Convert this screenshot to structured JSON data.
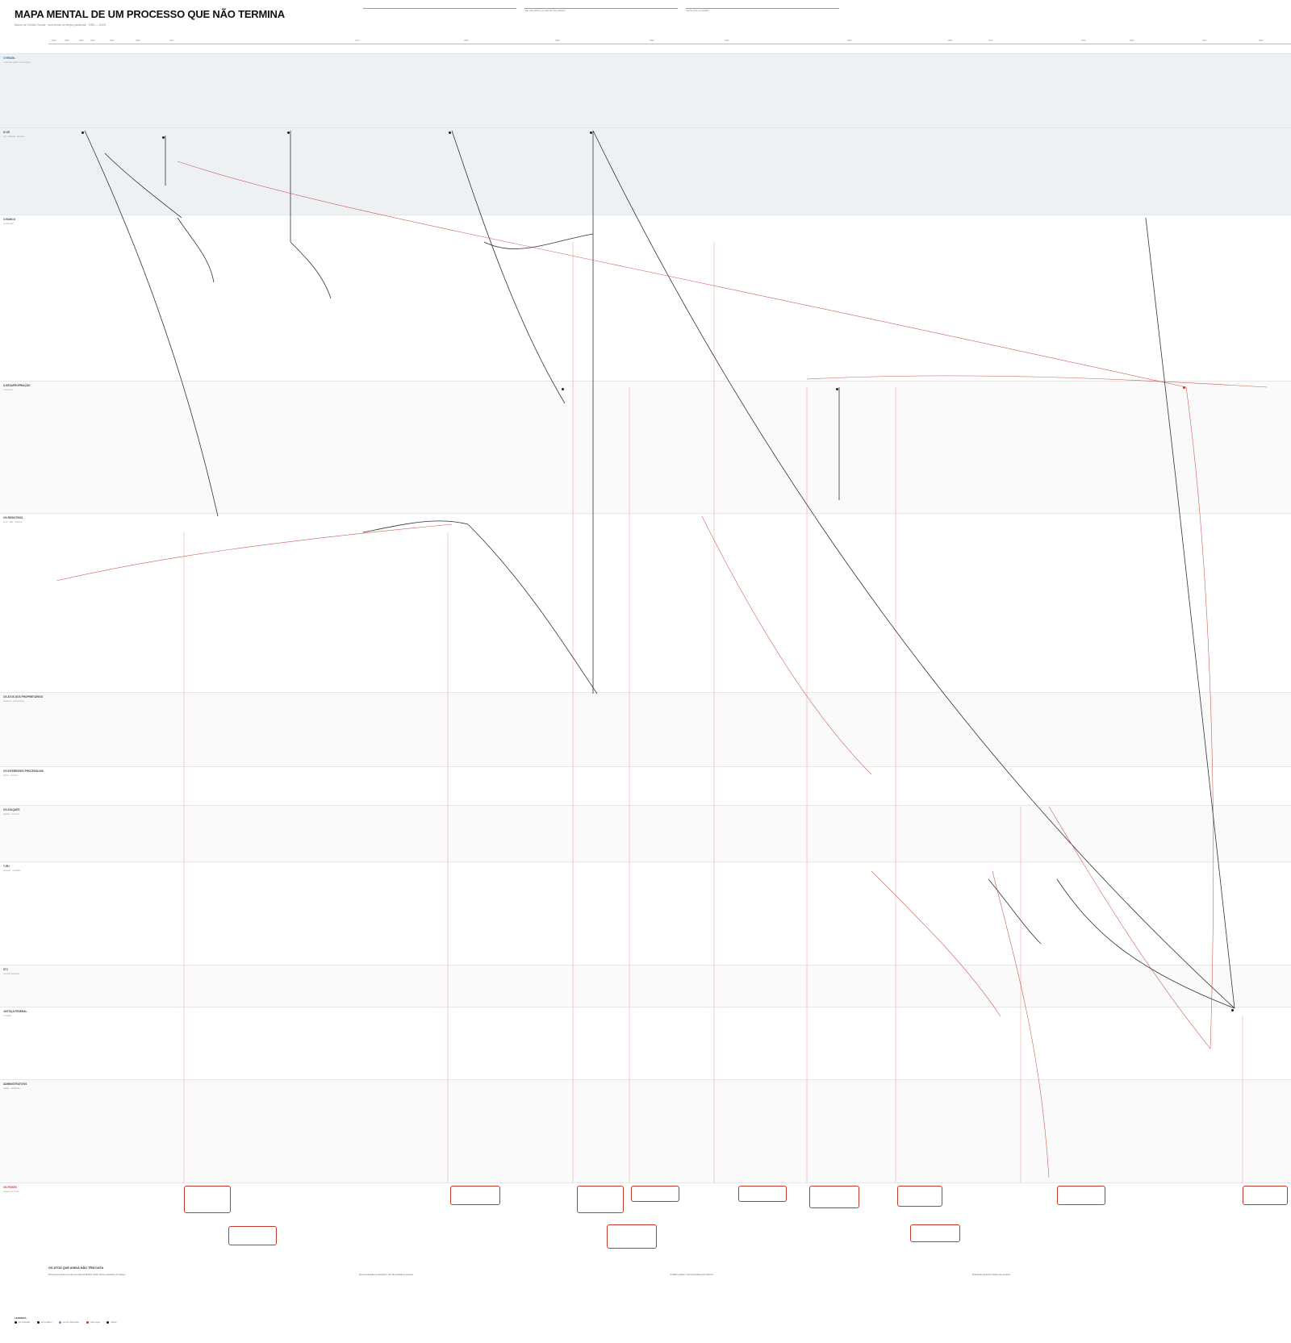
{
  "header": {
    "title": "MAPA MENTAL DE UM PROCESSO QUE NÃO TERMINA",
    "subtitle": "Banco de Crédito Gerais · seis linhas do tempo paralelas · 1950 — 2026",
    "notes": [
      {
        "label": "",
        "text": ""
      },
      {
        "label": "",
        "text": "\"Há muito atribui, por mais de cinco séculos\""
      },
      {
        "label": "",
        "text": "\"Tenha vinte e a metade\""
      },
      {
        "label": "",
        "text": ""
      }
    ]
  },
  "timeline": {
    "ticks": [
      "1950",
      "1958",
      "1960",
      "1962",
      "1964",
      "1968",
      "1973",
      "1976",
      "1980",
      "1985",
      "1990",
      "1994",
      "1999",
      "2003",
      "2010",
      "2014",
      "2018",
      "2022",
      "2026"
    ]
  },
  "bands": [
    {
      "name": "O BRASIL",
      "sub": "o contexto político e econômico"
    },
    {
      "name": "A LEI",
      "sub": "leis · portarias · decretos"
    },
    {
      "name": "O BANCO",
      "sub": "a instituição"
    },
    {
      "name": "A DESAPROPRIAÇÃO",
      "sub": "o processo"
    },
    {
      "name": "OS REGISTROS",
      "sub": "livros · atas · cartórios"
    },
    {
      "name": "OS ATOS DOS PROPRIETÁRIOS",
      "sub": "herdeiros · procuradores"
    },
    {
      "name": "OS INTERESSES PROCESSUAIS",
      "sub": "partes · terceiros"
    },
    {
      "name": "OS ATAQUES",
      "sub": "pedidos · recursos"
    },
    {
      "name": "TJRJ",
      "sub": "decisões · acórdãos"
    },
    {
      "name": "STJ",
      "sub": "recursos especiais"
    },
    {
      "name": "JUSTIÇA FEDERAL",
      "sub": "2ª região"
    },
    {
      "name": "ADMINISTRATIVOS",
      "sub": "órgãos · autarquias"
    },
    {
      "name": "OS FEIXES",
      "sub": "sínteses por tema"
    }
  ],
  "footer": {
    "title": "OS ATOS QUE AINDA NÃO TÊM DATA",
    "columns": [
      "Documentos citados nos autos sem data identificada. Cartas, ofícios e anotações de margem.",
      "Atas mencionadas em despachos, mas não juntadas ao processo.",
      "Certidões pedidas e não respondidas pelos cartórios.",
      "Referências a acordos verbais entre as partes."
    ]
  },
  "legend": {
    "title": "LEGENDA",
    "items": [
      "ato do Estado",
      "ato do Banco",
      "ato dos particulares",
      "marco legal",
      "citação"
    ],
    "note": ""
  },
  "colors": {
    "accent_red": "#c0392b",
    "accent_blue": "#5a8fbf",
    "band_shade": "#eef1f4",
    "ink": "#1a1a1a"
  }
}
